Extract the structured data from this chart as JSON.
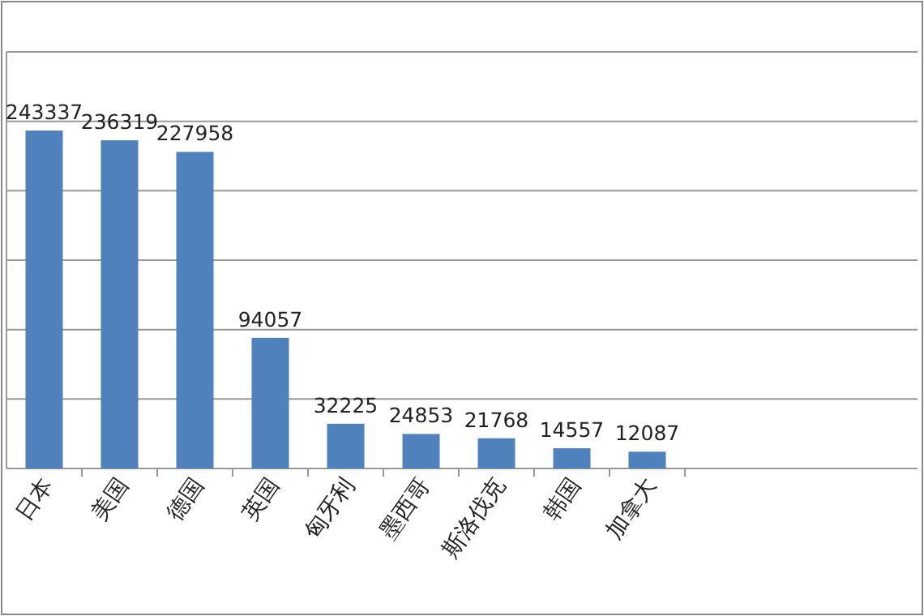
{
  "chart_data": {
    "type": "bar",
    "categories": [
      "日本",
      "美国",
      "德国",
      "英国",
      "匈牙利",
      "墨西哥",
      "斯洛伐克",
      "韩国",
      "加拿大"
    ],
    "values": [
      243337,
      236319,
      227958,
      94057,
      32225,
      24853,
      21768,
      14557,
      12087
    ],
    "color": "#4f81bd",
    "ylim": [
      0,
      300000
    ],
    "yticks": [
      {
        "value": 0,
        "label": null
      },
      {
        "value": 50000,
        "label": null
      },
      {
        "value": 100000,
        "label": null
      },
      {
        "value": 150000,
        "label": null
      },
      {
        "value": 200000,
        "label": null
      },
      {
        "value": 250000,
        "label": null
      },
      {
        "value": 300000,
        "label": null
      }
    ],
    "grid": "y",
    "tick_labels": "x",
    "data_labels": true
  }
}
